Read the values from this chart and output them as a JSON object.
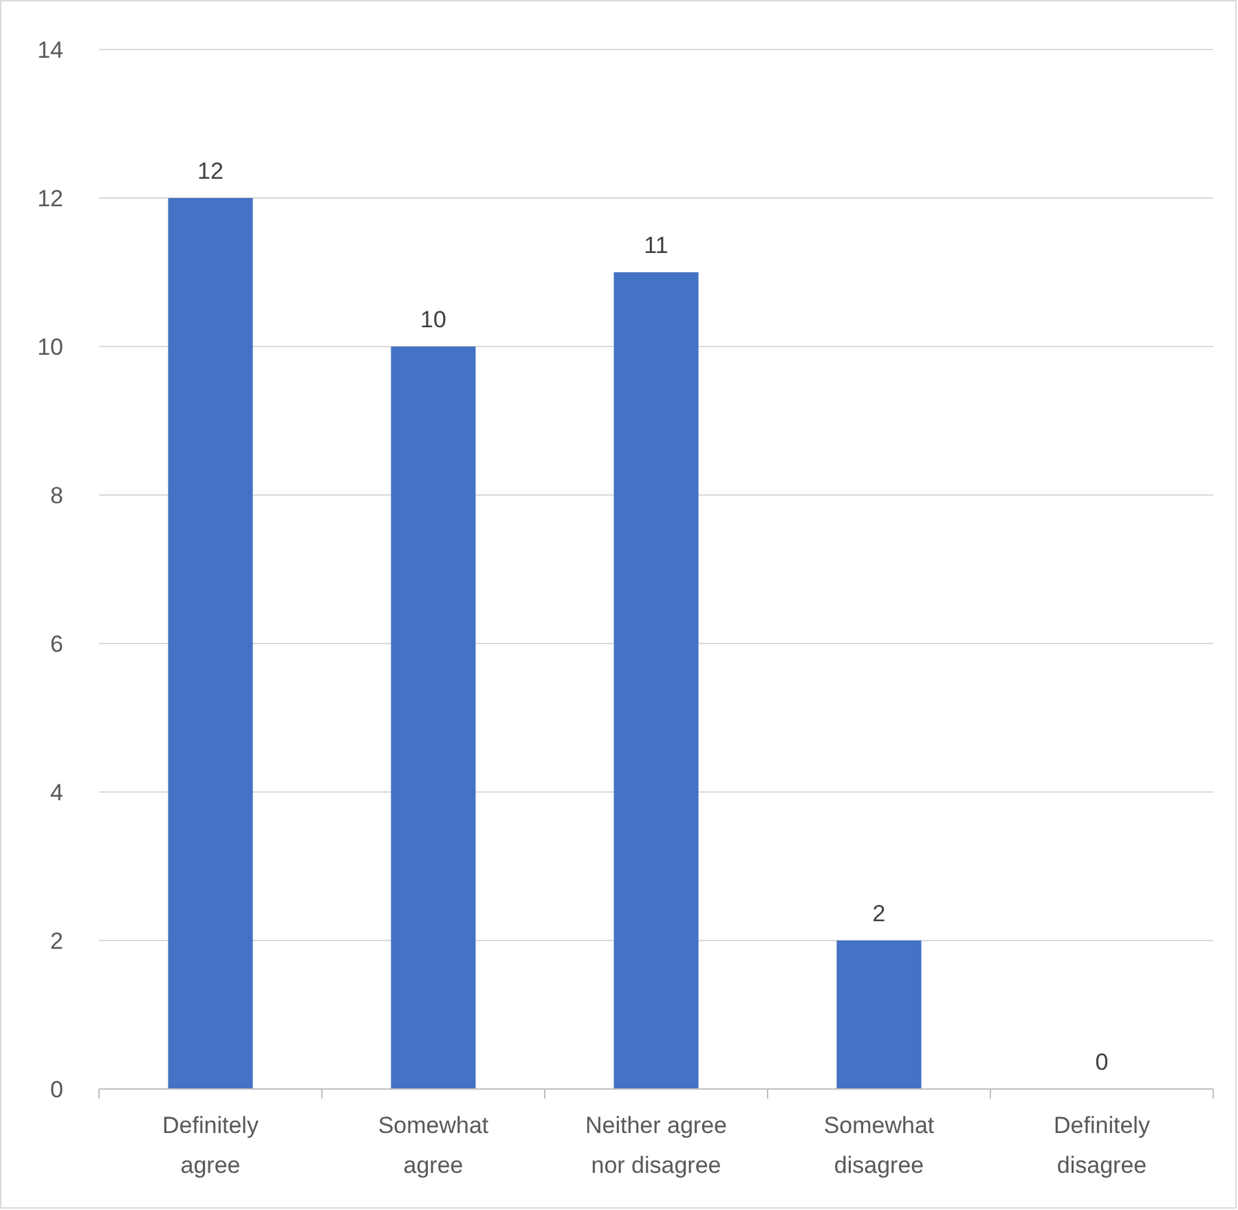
{
  "chart_data": {
    "type": "bar",
    "categories": [
      "Definitely agree",
      "Somewhat agree",
      "Neither agree nor disagree",
      "Somewhat disagree",
      "Definitely disagree"
    ],
    "values": [
      12,
      10,
      11,
      2,
      0
    ],
    "color": "#4472c4",
    "ylim": [
      0,
      14
    ],
    "yticks": [
      0,
      2,
      4,
      6,
      8,
      10,
      12,
      14
    ],
    "grid": "y",
    "data_labels": true
  }
}
